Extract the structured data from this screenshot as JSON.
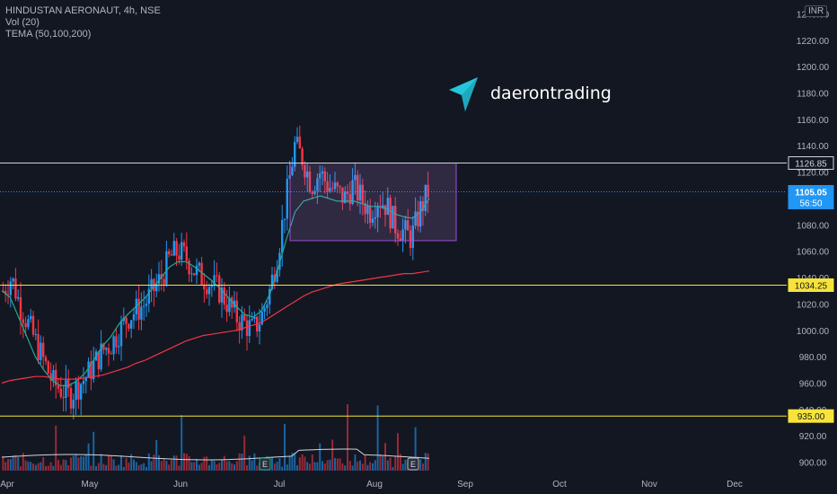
{
  "header": {
    "symbol_line": "HINDUSTAN AERONAUT, 4h, NSE",
    "vol_line": "Vol (20)",
    "tema_line": "TEMA (50,100,200)",
    "currency": "INR"
  },
  "brand": {
    "name": "daerontrading"
  },
  "colors": {
    "background": "#131722",
    "up": "#2196f3",
    "down": "#f23645",
    "tema50": "#22ab94",
    "tema100": "#f23645",
    "zone_fill": "#b87fd9",
    "zone_stroke": "#9c4fd6",
    "level_yellow": "#f7e43a",
    "level_white": "#d1d4dc",
    "vol_ma": "#d1d4dc"
  },
  "chart_data": {
    "type": "candlestick",
    "x_ticks": [
      "Apr",
      "May",
      "Jun",
      "Jul",
      "Aug",
      "Sep",
      "Oct",
      "Nov",
      "Dec"
    ],
    "y_ticks": [
      "1240.00",
      "1220.00",
      "1200.00",
      "1180.00",
      "1160.00",
      "1140.00",
      "1120.00",
      "1100.00",
      "1080.00",
      "1060.00",
      "1040.00",
      "1020.00",
      "1000.00",
      "980.00",
      "960.00",
      "940.00",
      "920.00",
      "900.00"
    ],
    "ylim": [
      897,
      1243
    ],
    "price_labels": [
      {
        "label": "1126.85",
        "price": 1126.85,
        "style": "level"
      },
      {
        "label": "1105.05",
        "sub": "56:50",
        "price": 1105.05,
        "style": "last"
      },
      {
        "label": "1034.25",
        "price": 1034.25,
        "style": "yellow"
      },
      {
        "label": "935.00",
        "price": 935.0,
        "style": "yellow"
      }
    ],
    "levels": [
      {
        "price": 1126.85,
        "style": "white"
      },
      {
        "price": 1034.25,
        "style": "yellow"
      },
      {
        "price": 935.0,
        "style": "yellow"
      }
    ],
    "last_price": 1105.05,
    "zone": {
      "x_start": "Jul",
      "x_end": "Aug",
      "price_top": 1126.85,
      "price_bottom": 1068
    },
    "earnings_markers": [
      "E",
      "E"
    ],
    "price_path": [
      1030,
      1040,
      1020,
      1005,
      990,
      975,
      960,
      955,
      950,
      958,
      965,
      975,
      985,
      990,
      1000,
      1010,
      1015,
      1020,
      1030,
      1040,
      1055,
      1060,
      1055,
      1045,
      1040,
      1035,
      1030,
      1020,
      1010,
      1005,
      1000,
      1010,
      1030,
      1060,
      1100,
      1140,
      1130,
      1110,
      1120,
      1110,
      1105,
      1100,
      1110,
      1100,
      1090,
      1100,
      1095,
      1080,
      1075,
      1070,
      1090,
      1105
    ],
    "series": [
      {
        "name": "TEMA 50",
        "values": [
          1030,
          1025,
          1010,
          995,
          980,
          970,
          962,
          958,
          958,
          962,
          968,
          978,
          988,
          995,
          1005,
          1012,
          1018,
          1024,
          1032,
          1040,
          1048,
          1052,
          1052,
          1048,
          1043,
          1038,
          1032,
          1025,
          1018,
          1012,
          1010,
          1015,
          1028,
          1048,
          1070,
          1090,
          1098,
          1100,
          1102,
          1100,
          1098,
          1098,
          1098,
          1096,
          1094,
          1094,
          1092,
          1088,
          1086,
          1085,
          1090,
          1100
        ]
      },
      {
        "name": "TEMA 200",
        "values": [
          960,
          962,
          963,
          964,
          965,
          965,
          964,
          963,
          963,
          963,
          964,
          965,
          966,
          968,
          970,
          972,
          975,
          977,
          980,
          983,
          986,
          989,
          992,
          994,
          996,
          997,
          998,
          999,
          1000,
          1002,
          1004,
          1006,
          1010,
          1014,
          1018,
          1022,
          1026,
          1029,
          1031,
          1033,
          1035,
          1036,
          1037,
          1038,
          1039,
          1040,
          1041,
          1042,
          1043,
          1043,
          1044,
          1045
        ]
      }
    ]
  }
}
